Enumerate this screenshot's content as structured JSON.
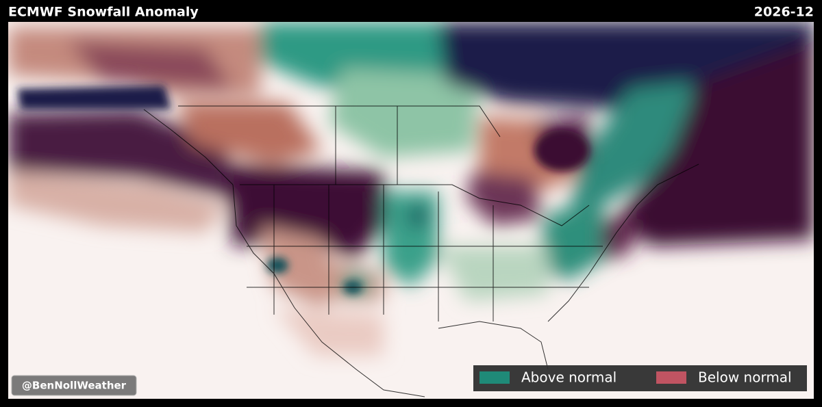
{
  "header": {
    "title": "ECMWF Snowfall Anomaly",
    "date": "2026-12"
  },
  "legend": {
    "items": [
      {
        "name": "Above normal",
        "color": "#1f8a78"
      },
      {
        "name": "Below normal",
        "color": "#c05462"
      }
    ]
  },
  "credit": "@BenNollWeather"
}
